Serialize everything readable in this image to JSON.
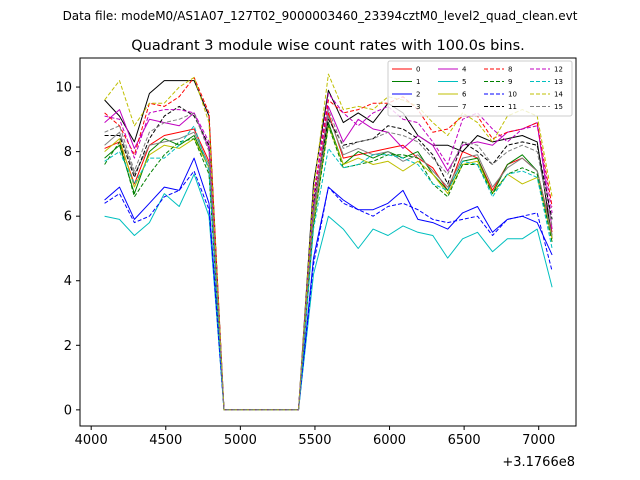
{
  "suptitle": "Data file: modeM0/AS1A07_127T02_9000003460_23394cztM0_level2_quad_clean.evt",
  "chart_data": {
    "type": "line",
    "title": "Quadrant 3 module wise count rates with 100.0s bins.",
    "xlabel": "",
    "ylabel": "",
    "x_offset_label": "+3.1766e8",
    "xlim": [
      3925,
      7250
    ],
    "ylim": [
      -0.5,
      10.9
    ],
    "xticks": [
      4000,
      4500,
      5000,
      5500,
      6000,
      6500,
      7000
    ],
    "yticks": [
      0,
      2,
      4,
      6,
      8,
      10
    ],
    "grid": false,
    "legend": {
      "position": "top-right",
      "columns": 4
    },
    "x": [
      4090,
      4190,
      4290,
      4390,
      4490,
      4590,
      4690,
      4790,
      4890,
      4990,
      5090,
      5190,
      5290,
      5390,
      5490,
      5590,
      5690,
      5790,
      5890,
      5990,
      6090,
      6190,
      6290,
      6390,
      6490,
      6590,
      6690,
      6790,
      6890,
      6990,
      7090
    ],
    "series": [
      {
        "name": "0",
        "color": "#ff0000",
        "dash": false,
        "values": [
          8.1,
          8.3,
          7.0,
          8.2,
          8.5,
          8.6,
          8.7,
          7.7,
          0,
          0,
          0,
          0,
          0,
          0,
          6.0,
          9.2,
          7.8,
          7.9,
          8.0,
          8.1,
          8.2,
          7.8,
          7.5,
          6.8,
          8.0,
          7.8,
          6.8,
          7.6,
          7.8,
          7.4,
          5.5
        ]
      },
      {
        "name": "1",
        "color": "#008000",
        "dash": false,
        "values": [
          7.8,
          8.2,
          6.7,
          8.0,
          8.4,
          8.2,
          8.5,
          7.5,
          0,
          0,
          0,
          0,
          0,
          0,
          5.8,
          8.9,
          7.6,
          8.0,
          7.8,
          8.0,
          7.8,
          8.0,
          7.3,
          6.8,
          7.7,
          7.8,
          6.7,
          7.6,
          7.9,
          7.4,
          5.4
        ]
      },
      {
        "name": "2",
        "color": "#0000ff",
        "dash": false,
        "values": [
          6.5,
          6.9,
          5.9,
          6.4,
          6.9,
          6.8,
          7.8,
          6.4,
          0,
          0,
          0,
          0,
          0,
          0,
          4.7,
          6.9,
          6.5,
          6.2,
          6.2,
          6.4,
          6.8,
          5.9,
          5.8,
          5.6,
          6.1,
          6.3,
          5.5,
          5.9,
          6.0,
          5.8,
          4.8
        ]
      },
      {
        "name": "3",
        "color": "#000000",
        "dash": false,
        "values": [
          9.6,
          9.1,
          8.3,
          9.8,
          10.2,
          10.2,
          10.2,
          9.1,
          0,
          0,
          0,
          0,
          0,
          0,
          7.0,
          9.9,
          8.9,
          9.2,
          8.9,
          9.5,
          9.2,
          8.5,
          8.2,
          8.2,
          8.0,
          8.5,
          8.3,
          8.4,
          8.5,
          8.3,
          5.3
        ]
      },
      {
        "name": "4",
        "color": "#c000c0",
        "dash": false,
        "values": [
          8.9,
          9.3,
          8.1,
          9.0,
          8.9,
          8.8,
          9.2,
          8.1,
          0,
          0,
          0,
          0,
          0,
          0,
          6.2,
          9.4,
          8.3,
          9.0,
          8.7,
          8.6,
          8.1,
          8.5,
          8.2,
          7.4,
          8.2,
          8.3,
          8.2,
          8.6,
          8.7,
          8.9,
          5.6
        ]
      },
      {
        "name": "5",
        "color": "#00bfbf",
        "dash": false,
        "values": [
          6.0,
          5.9,
          5.4,
          5.8,
          6.7,
          6.3,
          7.3,
          6.0,
          0,
          0,
          0,
          0,
          0,
          0,
          4.2,
          6.0,
          5.6,
          5.0,
          5.6,
          5.4,
          5.7,
          5.5,
          5.4,
          4.7,
          5.3,
          5.5,
          4.9,
          5.3,
          5.3,
          5.6,
          3.8
        ]
      },
      {
        "name": "6",
        "color": "#bfbf00",
        "dash": false,
        "values": [
          8.0,
          8.4,
          6.9,
          7.9,
          8.2,
          8.1,
          8.4,
          7.5,
          0,
          0,
          0,
          0,
          0,
          0,
          5.8,
          8.8,
          7.6,
          7.8,
          7.6,
          7.7,
          7.4,
          7.7,
          7.3,
          6.7,
          7.6,
          7.7,
          6.7,
          7.3,
          7.0,
          7.2,
          5.3
        ]
      },
      {
        "name": "7",
        "color": "#808080",
        "dash": false,
        "values": [
          8.2,
          8.6,
          7.3,
          8.2,
          8.3,
          8.4,
          8.6,
          7.6,
          0,
          0,
          0,
          0,
          0,
          0,
          6.0,
          9.1,
          7.9,
          8.1,
          7.9,
          8.0,
          7.7,
          7.9,
          7.4,
          6.9,
          7.8,
          7.9,
          6.9,
          7.5,
          7.8,
          7.4,
          5.4
        ]
      },
      {
        "name": "8",
        "color": "#ff0000",
        "dash": true,
        "values": [
          9.2,
          8.8,
          7.9,
          9.5,
          9.4,
          9.7,
          10.3,
          9.2,
          0,
          0,
          0,
          0,
          0,
          0,
          6.5,
          9.6,
          9.2,
          9.3,
          9.5,
          9.5,
          9.7,
          9.3,
          8.6,
          8.7,
          9.1,
          9.1,
          8.4,
          8.6,
          8.7,
          8.9,
          6.3
        ]
      },
      {
        "name": "9",
        "color": "#008000",
        "dash": true,
        "values": [
          7.6,
          8.3,
          6.6,
          7.3,
          7.9,
          8.3,
          8.4,
          7.3,
          0,
          0,
          0,
          0,
          0,
          0,
          5.7,
          8.8,
          7.5,
          7.6,
          7.7,
          7.9,
          7.9,
          7.8,
          7.0,
          6.6,
          7.6,
          7.6,
          6.7,
          7.3,
          7.5,
          7.3,
          5.2
        ]
      },
      {
        "name": "10",
        "color": "#0000ff",
        "dash": true,
        "values": [
          6.4,
          6.7,
          5.8,
          6.0,
          6.6,
          6.8,
          7.4,
          6.2,
          0,
          0,
          0,
          0,
          0,
          0,
          4.5,
          6.9,
          6.4,
          6.2,
          6.0,
          6.3,
          6.4,
          6.2,
          5.9,
          5.8,
          5.9,
          6.0,
          5.4,
          5.9,
          6.0,
          6.1,
          4.3
        ]
      },
      {
        "name": "11",
        "color": "#000000",
        "dash": true,
        "values": [
          8.5,
          8.5,
          7.2,
          8.4,
          9.1,
          9.4,
          9.1,
          8.2,
          0,
          0,
          0,
          0,
          0,
          0,
          6.4,
          9.0,
          8.2,
          8.3,
          8.4,
          8.8,
          8.7,
          8.4,
          7.9,
          7.0,
          8.3,
          8.0,
          7.6,
          8.2,
          8.3,
          8.2,
          5.9
        ]
      },
      {
        "name": "12",
        "color": "#c000c0",
        "dash": true,
        "values": [
          9.1,
          9.0,
          7.8,
          9.2,
          9.3,
          9.3,
          9.2,
          8.3,
          0,
          0,
          0,
          0,
          0,
          0,
          6.6,
          9.8,
          9.2,
          8.8,
          9.2,
          9.4,
          9.0,
          8.9,
          8.3,
          7.6,
          9.0,
          9.2,
          8.7,
          8.3,
          8.7,
          8.8,
          6.1
        ]
      },
      {
        "name": "13",
        "color": "#00bfbf",
        "dash": true,
        "values": [
          7.7,
          8.0,
          7.0,
          7.8,
          7.8,
          8.2,
          8.8,
          7.4,
          0,
          0,
          0,
          0,
          0,
          0,
          5.6,
          8.1,
          7.5,
          7.6,
          7.9,
          7.9,
          7.8,
          7.6,
          7.0,
          6.8,
          7.7,
          7.6,
          6.6,
          7.3,
          7.4,
          7.2,
          5.0
        ]
      },
      {
        "name": "14",
        "color": "#bfbf00",
        "dash": true,
        "values": [
          9.6,
          10.2,
          8.8,
          9.5,
          9.5,
          10.0,
          10.3,
          8.9,
          0,
          0,
          0,
          0,
          0,
          0,
          6.8,
          10.4,
          9.3,
          9.4,
          9.3,
          9.7,
          9.6,
          9.4,
          8.9,
          8.5,
          9.2,
          8.9,
          8.3,
          9.1,
          9.3,
          9.1,
          6.6
        ]
      },
      {
        "name": "15",
        "color": "#808080",
        "dash": true,
        "values": [
          8.6,
          8.8,
          7.4,
          8.6,
          8.9,
          9.0,
          9.2,
          8.0,
          0,
          0,
          0,
          0,
          0,
          0,
          6.2,
          9.3,
          8.1,
          8.3,
          8.4,
          8.6,
          8.5,
          8.3,
          7.8,
          7.3,
          8.3,
          8.2,
          7.6,
          8.0,
          8.2,
          8.0,
          5.7
        ]
      }
    ]
  }
}
